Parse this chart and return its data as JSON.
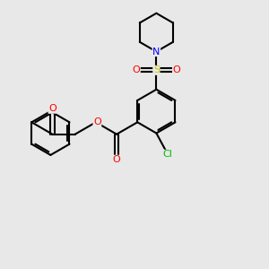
{
  "bg_color": "#e8e8e8",
  "bond_color": "#000000",
  "atom_colors": {
    "O": "#ff0000",
    "N": "#0000ff",
    "S": "#cccc00",
    "Cl": "#00bb00",
    "C": "#000000"
  },
  "figsize": [
    3.0,
    3.0
  ],
  "dpi": 100
}
